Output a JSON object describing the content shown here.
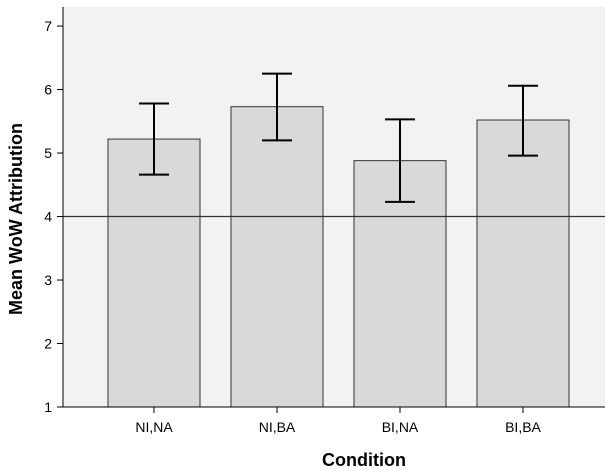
{
  "chart_data": {
    "type": "bar",
    "title": "",
    "xlabel": "Condition",
    "ylabel": "Mean WoW Attribution",
    "categories": [
      "NI,NA",
      "NI,BA",
      "BI,NA",
      "BI,BA"
    ],
    "values": [
      5.22,
      5.73,
      4.88,
      5.52
    ],
    "error_low": [
      4.66,
      5.2,
      4.23,
      4.96
    ],
    "error_high": [
      5.78,
      6.25,
      5.53,
      6.06
    ],
    "ylim": [
      1,
      7.3
    ],
    "yticks": [
      1,
      2,
      3,
      4,
      5,
      6,
      7
    ],
    "reference_line": 4,
    "grid": false,
    "legend": "none",
    "colors": {
      "plot_background": "#f2f2f2",
      "bar_fill": "#d9d9d9",
      "bar_stroke": "#333333",
      "error_bar": "#000000",
      "reference_line": "#333333"
    }
  }
}
